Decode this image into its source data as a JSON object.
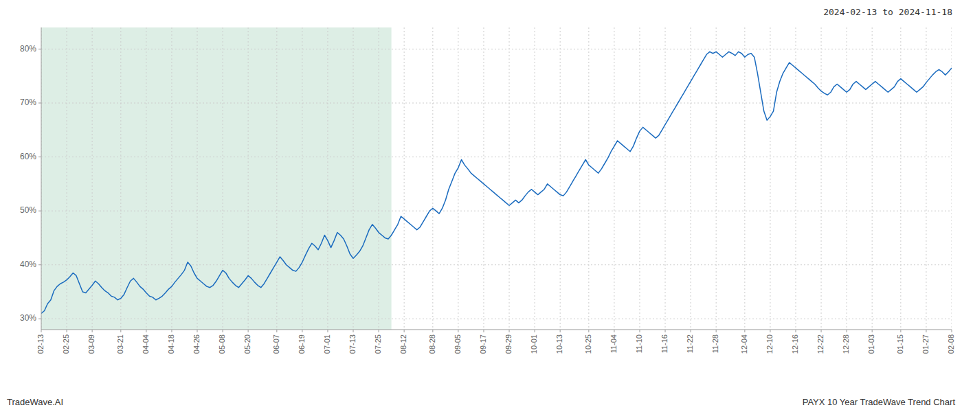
{
  "chart_data": {
    "type": "line",
    "title": "PAYX 10 Year TradeWave Trend Chart",
    "subtitle": "2024-02-13 to 2024-11-18",
    "annotations": [
      {
        "text": "TradeWave.AI"
      }
    ],
    "categories": [
      "02-13",
      null,
      null,
      null,
      null,
      null,
      null,
      null,
      "02-25",
      null,
      null,
      null,
      null,
      null,
      null,
      null,
      "03-09",
      null,
      null,
      null,
      null,
      null,
      null,
      null,
      null,
      "03-21",
      null,
      null,
      null,
      null,
      null,
      null,
      null,
      "04-04",
      null,
      null,
      null,
      null,
      null,
      null,
      null,
      "04-18",
      null,
      null,
      null,
      null,
      null,
      null,
      null,
      "04-26",
      null,
      null,
      null,
      null,
      null,
      null,
      null,
      "05-08",
      null,
      null,
      null,
      null,
      null,
      null,
      null,
      "05-20",
      null,
      null,
      null,
      null,
      null,
      null,
      null,
      null,
      "06-07",
      null,
      null,
      null,
      null,
      null,
      null,
      null,
      "06-19",
      null,
      null,
      null,
      null,
      null,
      null,
      null,
      "07-01",
      null,
      null,
      null,
      null,
      null,
      null,
      null,
      "07-13",
      null,
      null,
      null,
      null,
      null,
      null,
      null,
      "07-25",
      null,
      null,
      null,
      null,
      null,
      null,
      null,
      "08-12",
      null,
      null,
      null,
      null,
      null,
      null,
      null,
      null,
      "08-28",
      null,
      null,
      null,
      null,
      null,
      null,
      null,
      "09-05",
      null,
      null,
      null,
      null,
      null,
      null,
      null,
      "09-17",
      null,
      null,
      null,
      null,
      null,
      null,
      null,
      "09-29",
      null,
      null,
      null,
      null,
      null,
      null,
      null,
      "10-01",
      null,
      null,
      null,
      null,
      null,
      null,
      null,
      "10-13",
      null,
      null,
      null,
      null,
      null,
      null,
      null,
      null,
      "10-25",
      null,
      null,
      null,
      null,
      null,
      null,
      null,
      "11-04",
      null,
      null,
      null,
      null,
      null,
      null,
      null,
      "11-10",
      null,
      null,
      null,
      null,
      null,
      null,
      null,
      "11-16",
      null,
      null,
      null,
      null,
      null,
      null,
      null,
      "11-22",
      null,
      null,
      null,
      null,
      null,
      null,
      null,
      "11-28",
      null,
      null,
      null,
      null,
      null,
      null,
      null,
      null,
      "12-04",
      null,
      null,
      null,
      null,
      null,
      null,
      null,
      "12-10",
      null,
      null,
      null,
      null,
      null,
      null,
      null,
      "12-16",
      null,
      null,
      null,
      null,
      null,
      null,
      null,
      "12-22",
      null,
      null,
      null,
      null,
      null,
      null,
      null,
      "12-28",
      null,
      null,
      null,
      null,
      null,
      null,
      null,
      "01-03",
      null,
      null,
      null,
      null,
      null,
      null,
      null,
      null,
      "01-15",
      null,
      null,
      null,
      null,
      null,
      null,
      null,
      "01-27",
      null,
      null,
      null,
      null,
      null,
      null,
      null,
      "02-08"
    ],
    "values": [
      31.0,
      31.5,
      32.8,
      33.5,
      35.2,
      36.0,
      36.5,
      36.8,
      37.2,
      37.8,
      38.5,
      38.0,
      36.5,
      35.0,
      34.8,
      35.5,
      36.2,
      37.0,
      36.5,
      35.8,
      35.2,
      34.8,
      34.2,
      34.0,
      33.5,
      33.8,
      34.5,
      35.8,
      37.0,
      37.5,
      36.8,
      36.0,
      35.5,
      34.8,
      34.2,
      34.0,
      33.5,
      33.8,
      34.2,
      34.8,
      35.5,
      36.0,
      36.8,
      37.5,
      38.2,
      39.0,
      40.5,
      39.8,
      38.5,
      37.5,
      37.0,
      36.5,
      36.0,
      35.8,
      36.2,
      37.0,
      38.0,
      39.0,
      38.5,
      37.5,
      36.8,
      36.2,
      35.8,
      36.5,
      37.2,
      38.0,
      37.5,
      36.8,
      36.2,
      35.8,
      36.5,
      37.5,
      38.5,
      39.5,
      40.5,
      41.5,
      40.8,
      40.0,
      39.5,
      39.0,
      38.8,
      39.5,
      40.5,
      41.8,
      43.0,
      44.0,
      43.5,
      42.8,
      44.0,
      45.5,
      44.5,
      43.2,
      44.5,
      46.0,
      45.5,
      44.8,
      43.5,
      42.0,
      41.2,
      41.8,
      42.5,
      43.5,
      45.0,
      46.5,
      47.5,
      46.8,
      46.0,
      45.5,
      45.0,
      44.8,
      45.5,
      46.5,
      47.5,
      49.0,
      48.5,
      48.0,
      47.5,
      47.0,
      46.5,
      47.0,
      48.0,
      49.0,
      50.0,
      50.5,
      50.0,
      49.5,
      50.5,
      52.0,
      54.0,
      55.5,
      57.0,
      58.0,
      59.5,
      58.5,
      57.8,
      57.0,
      56.5,
      56.0,
      55.5,
      55.0,
      54.5,
      54.0,
      53.5,
      53.0,
      52.5,
      52.0,
      51.5,
      51.0,
      51.5,
      52.0,
      51.5,
      52.0,
      52.8,
      53.5,
      54.0,
      53.5,
      53.0,
      53.5,
      54.0,
      55.0,
      54.5,
      54.0,
      53.5,
      53.0,
      52.8,
      53.5,
      54.5,
      55.5,
      56.5,
      57.5,
      58.5,
      59.5,
      58.5,
      58.0,
      57.5,
      57.0,
      57.8,
      58.8,
      59.8,
      61.0,
      62.0,
      63.0,
      62.5,
      62.0,
      61.5,
      61.0,
      62.0,
      63.5,
      64.8,
      65.5,
      65.0,
      64.5,
      64.0,
      63.5,
      64.0,
      65.0,
      66.0,
      67.0,
      68.0,
      69.0,
      70.0,
      71.0,
      72.0,
      73.0,
      74.0,
      75.0,
      76.0,
      77.0,
      78.0,
      79.0,
      79.5,
      79.2,
      79.5,
      79.0,
      78.5,
      79.0,
      79.5,
      79.2,
      78.8,
      79.5,
      79.2,
      78.5,
      79.0,
      79.2,
      78.5,
      75.5,
      72.0,
      68.5,
      66.8,
      67.5,
      68.5,
      72.0,
      74.0,
      75.5,
      76.5,
      77.5,
      77.0,
      76.5,
      76.0,
      75.5,
      75.0,
      74.5,
      74.0,
      73.5,
      72.8,
      72.2,
      71.8,
      71.5,
      72.0,
      73.0,
      73.5,
      73.0,
      72.5,
      72.0,
      72.5,
      73.5,
      74.0,
      73.5,
      73.0,
      72.5,
      73.0,
      73.5,
      74.0,
      73.5,
      73.0,
      72.5,
      72.0,
      72.5,
      73.0,
      74.0,
      74.5,
      74.0,
      73.5,
      73.0,
      72.5,
      72.0,
      72.5,
      73.0,
      73.8,
      74.5,
      75.2,
      75.8,
      76.2,
      75.8,
      75.2,
      75.8,
      76.5
    ],
    "color": "#1a6bbf",
    "ylim": [
      28,
      84
    ],
    "yticks": [
      {
        "value": 30,
        "label": "30%"
      },
      {
        "value": 40,
        "label": "40%"
      },
      {
        "value": 50,
        "label": "50%"
      },
      {
        "value": 60,
        "label": "60%"
      },
      {
        "value": 70,
        "label": "70%"
      },
      {
        "value": 80,
        "label": "80%"
      }
    ],
    "grid": true,
    "shaded_region": {
      "from": 0,
      "to": 110,
      "color": "#ddeee5"
    }
  }
}
